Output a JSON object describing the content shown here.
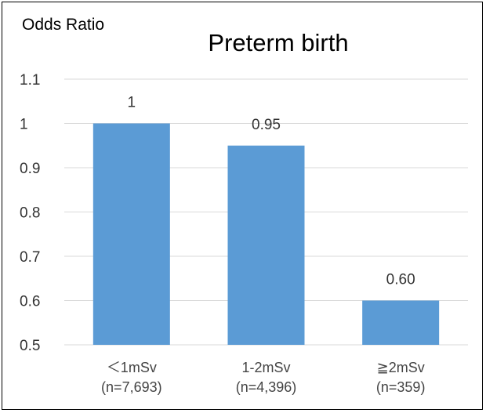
{
  "chart_data": {
    "type": "bar",
    "title": "Preterm birth",
    "ylabel": "Odds Ratio",
    "xlabel": "",
    "categories": [
      [
        "＜1mSv",
        "(n=7,693)"
      ],
      [
        "1-2mSv",
        "(n=4,396)"
      ],
      [
        "≧2mSv",
        "(n=359)"
      ]
    ],
    "values": [
      1,
      0.95,
      0.6
    ],
    "data_labels": [
      "1",
      "0.95",
      "0.60"
    ],
    "ylim": [
      0.5,
      1.1
    ],
    "yticks": [
      "0.5",
      "0.6",
      "0.7",
      "0.8",
      "0.9",
      "1",
      "1.1"
    ],
    "ytick_values": [
      0.5,
      0.6,
      0.7,
      0.8,
      0.9,
      1.0,
      1.1
    ],
    "grid": true,
    "legend": "none",
    "colors": {
      "bar": "#5B9BD5",
      "grid": "#D9D9D9"
    }
  }
}
